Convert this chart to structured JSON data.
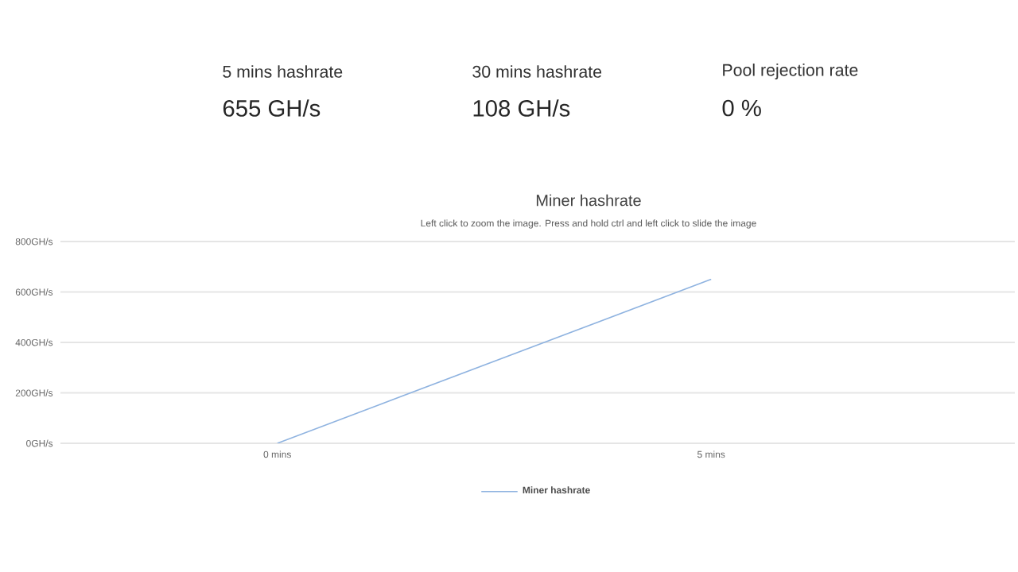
{
  "chart_data": {
    "type": "line",
    "title": "Miner hashrate",
    "subtitle": "Left click to zoom the image. Press and hold ctrl and left click to slide the image",
    "categories": [
      "0 mins",
      "5 mins"
    ],
    "series": [
      {
        "name": "Miner hashrate",
        "color": "#8fb3e0",
        "values": [
          0,
          650
        ]
      }
    ],
    "ylim": [
      0,
      800
    ],
    "yticks": [
      {
        "value": 0,
        "label": "0GH/s"
      },
      {
        "value": 200,
        "label": "200GH/s"
      },
      {
        "value": 400,
        "label": "400GH/s"
      },
      {
        "value": 600,
        "label": "600GH/s"
      },
      {
        "value": 800,
        "label": "800GH/s"
      }
    ],
    "grid": "y",
    "legend": "bottom",
    "marker": "none",
    "line_style": "solid",
    "annotations": [
      "5 mins hashrate",
      "655 GH/s",
      "30 mins hashrate",
      "108 GH/s",
      "Pool rejection rate",
      "0 %"
    ]
  }
}
